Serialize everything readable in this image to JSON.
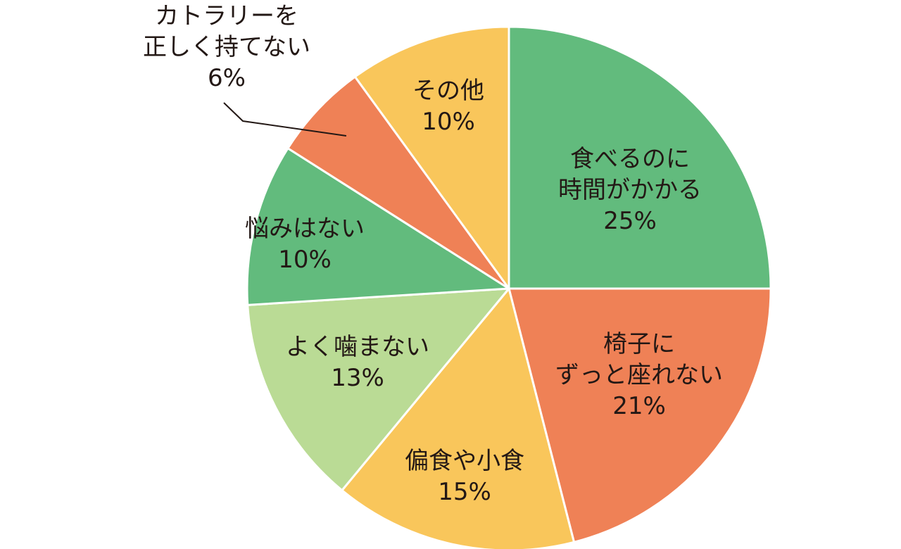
{
  "chart_data": {
    "type": "pie",
    "start_angle_deg": 0,
    "direction": "clockwise",
    "slices": [
      {
        "label": [
          "食べるのに",
          "時間がかかる"
        ],
        "percent_text": "25%",
        "value": 25,
        "color": "#62bb7d"
      },
      {
        "label": [
          "椅子に",
          "ずっと座れない"
        ],
        "percent_text": "21%",
        "value": 21,
        "color": "#ef8156"
      },
      {
        "label": [
          "偏食や小食"
        ],
        "percent_text": "15%",
        "value": 15,
        "color": "#f9c65b"
      },
      {
        "label": [
          "よく噛まない"
        ],
        "percent_text": "13%",
        "value": 13,
        "color": "#badb95"
      },
      {
        "label": [
          "悩みはない"
        ],
        "percent_text": "10%",
        "value": 10,
        "color": "#62bb7d"
      },
      {
        "label": [
          "カトラリーを",
          "正しく持てない"
        ],
        "percent_text": "6%",
        "value": 6,
        "color": "#ef8156",
        "outside": true
      },
      {
        "label": [
          "その他"
        ],
        "percent_text": "10%",
        "value": 10,
        "color": "#f9c65b"
      }
    ]
  }
}
